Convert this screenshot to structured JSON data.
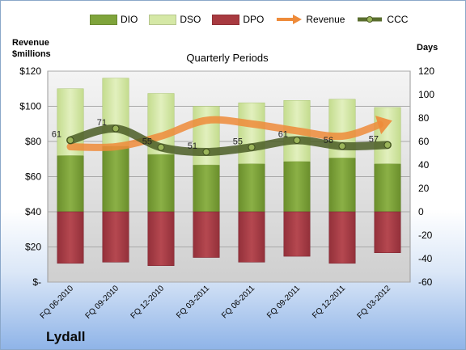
{
  "company": "Lydall",
  "axes": {
    "left_title_line1": "Revenue",
    "left_title_line2": "$millions",
    "right_title": "Days",
    "subtitle": "Quarterly Periods"
  },
  "legend": [
    {
      "key": "dio",
      "label": "DIO",
      "color": "#7fa43b"
    },
    {
      "key": "dso",
      "label": "DSO",
      "color": "#d5e8a6"
    },
    {
      "key": "dpo",
      "label": "DPO",
      "color": "#a83a40"
    },
    {
      "key": "revenue",
      "label": "Revenue",
      "color": "#ee8b3a"
    },
    {
      "key": "ccc",
      "label": "CCC",
      "color": "#5a6e2f"
    }
  ],
  "chart_data": {
    "type": "bar",
    "stacked": true,
    "categories": [
      "FQ 06-2010",
      "FQ 09-2010",
      "FQ 12-2010",
      "FQ 03-2011",
      "FQ 06-2011",
      "FQ 09-2011",
      "FQ 12-2011",
      "FQ 03-2012"
    ],
    "series": [
      {
        "name": "DIO",
        "axis": "right",
        "values": [
          48,
          56,
          49,
          40,
          41,
          43,
          46,
          41
        ]
      },
      {
        "name": "DSO",
        "axis": "right",
        "values": [
          57,
          58,
          52,
          50,
          52,
          52,
          50,
          48
        ]
      },
      {
        "name": "DPO",
        "axis": "right",
        "values": [
          -44,
          -43,
          -46,
          -39,
          -43,
          -38,
          -44,
          -35
        ]
      },
      {
        "name": "Revenue",
        "axis": "left",
        "type": "line",
        "values": [
          77,
          77,
          83,
          92,
          90,
          86,
          83,
          91
        ]
      },
      {
        "name": "CCC",
        "axis": "right",
        "type": "line",
        "values": [
          61,
          71,
          55,
          51,
          55,
          61,
          56,
          57
        ],
        "labels": [
          "61",
          "71",
          "55",
          "51",
          "55",
          "61",
          "56",
          "57"
        ]
      }
    ],
    "ylim_left": [
      0,
      120
    ],
    "yticks_left": [
      "$-",
      "$20",
      "$40",
      "$60",
      "$80",
      "$100",
      "$120"
    ],
    "ylim_right": [
      -60,
      120
    ],
    "yticks_right": [
      "-60",
      "-40",
      "-20",
      "0",
      "20",
      "40",
      "60",
      "80",
      "100",
      "120"
    ],
    "grid": true,
    "legend_position": "top"
  }
}
